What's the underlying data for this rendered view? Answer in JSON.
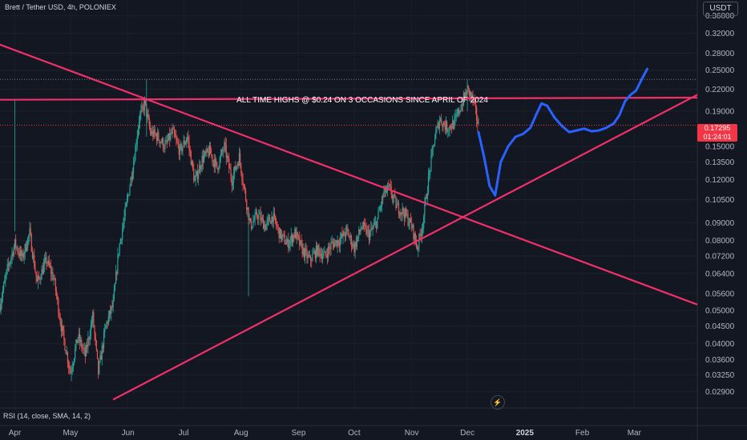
{
  "header": {
    "title": "Brett / Tether USD, 4h, POLONIEX"
  },
  "currency_label": "USDT",
  "indicator": {
    "label": "RSI (14, close, SMA, 14, 2)"
  },
  "price_tag": {
    "price": "0.17295",
    "countdown": "01:24:01"
  },
  "icons": {
    "bolt": "lightning-icon"
  },
  "colors": {
    "background": "#131722",
    "up": "#26a69a",
    "down": "#ef5350",
    "trendline": "#f0306a",
    "projection": "#2962ff",
    "tag": "#f23645"
  },
  "chart_data": {
    "type": "candlestick",
    "title": "",
    "annotation": "ALL TIME HIGHS @ $0.24 ON 3 OCCASIONS SINCE APRIL OF 2024",
    "y_scale": "log",
    "ylim": [
      0.026,
      0.4
    ],
    "y_ticks": [
      "0.36000",
      "0.32000",
      "0.28000",
      "0.25000",
      "0.22000",
      "0.19000",
      "0.17295",
      "0.15000",
      "0.13500",
      "0.12000",
      "0.10500",
      "0.09000",
      "0.08000",
      "0.07200",
      "0.06400",
      "0.05600",
      "0.05000",
      "0.04500",
      "0.04000",
      "0.03600",
      "0.03250",
      "0.02900"
    ],
    "x_ticks": [
      "Apr",
      "May",
      "Jun",
      "Jul",
      "Aug",
      "Sep",
      "Oct",
      "Nov",
      "Dec",
      "2025",
      "Feb",
      "Mar"
    ],
    "xlim": [
      "2024-03-24",
      "2025-04-04"
    ],
    "last_price": 0.17295,
    "price_path": [
      [
        "2024-03-24",
        0.052
      ],
      [
        "2024-03-28",
        0.066
      ],
      [
        "2024-04-01",
        0.078
      ],
      [
        "2024-04-05",
        0.071
      ],
      [
        "2024-04-09",
        0.084
      ],
      [
        "2024-04-13",
        0.06
      ],
      [
        "2024-04-18",
        0.07
      ],
      [
        "2024-04-22",
        0.062
      ],
      [
        "2024-04-26",
        0.045
      ],
      [
        "2024-05-01",
        0.033
      ],
      [
        "2024-05-05",
        0.042
      ],
      [
        "2024-05-09",
        0.037
      ],
      [
        "2024-05-13",
        0.048
      ],
      [
        "2024-05-16",
        0.033
      ],
      [
        "2024-05-20",
        0.045
      ],
      [
        "2024-05-24",
        0.052
      ],
      [
        "2024-05-27",
        0.075
      ],
      [
        "2024-05-31",
        0.1
      ],
      [
        "2024-06-04",
        0.135
      ],
      [
        "2024-06-07",
        0.18
      ],
      [
        "2024-06-10",
        0.2
      ],
      [
        "2024-06-13",
        0.165
      ],
      [
        "2024-06-17",
        0.16
      ],
      [
        "2024-06-21",
        0.15
      ],
      [
        "2024-06-25",
        0.165
      ],
      [
        "2024-06-29",
        0.145
      ],
      [
        "2024-07-03",
        0.16
      ],
      [
        "2024-07-07",
        0.118
      ],
      [
        "2024-07-11",
        0.138
      ],
      [
        "2024-07-15",
        0.145
      ],
      [
        "2024-07-19",
        0.13
      ],
      [
        "2024-07-23",
        0.15
      ],
      [
        "2024-07-27",
        0.12
      ],
      [
        "2024-07-31",
        0.14
      ],
      [
        "2024-08-03",
        0.11
      ],
      [
        "2024-08-06",
        0.088
      ],
      [
        "2024-08-10",
        0.095
      ],
      [
        "2024-08-14",
        0.088
      ],
      [
        "2024-08-18",
        0.094
      ],
      [
        "2024-08-22",
        0.083
      ],
      [
        "2024-08-26",
        0.078
      ],
      [
        "2024-08-30",
        0.084
      ],
      [
        "2024-09-03",
        0.075
      ],
      [
        "2024-09-07",
        0.07
      ],
      [
        "2024-09-11",
        0.075
      ],
      [
        "2024-09-15",
        0.072
      ],
      [
        "2024-09-19",
        0.078
      ],
      [
        "2024-09-23",
        0.08
      ],
      [
        "2024-09-27",
        0.085
      ],
      [
        "2024-10-01",
        0.076
      ],
      [
        "2024-10-05",
        0.088
      ],
      [
        "2024-10-09",
        0.083
      ],
      [
        "2024-10-13",
        0.09
      ],
      [
        "2024-10-17",
        0.11
      ],
      [
        "2024-10-20",
        0.113
      ],
      [
        "2024-10-24",
        0.1
      ],
      [
        "2024-10-28",
        0.096
      ],
      [
        "2024-11-01",
        0.088
      ],
      [
        "2024-11-04",
        0.076
      ],
      [
        "2024-11-07",
        0.09
      ],
      [
        "2024-11-10",
        0.12
      ],
      [
        "2024-11-13",
        0.155
      ],
      [
        "2024-11-16",
        0.18
      ],
      [
        "2024-11-20",
        0.17
      ],
      [
        "2024-11-24",
        0.175
      ],
      [
        "2024-11-28",
        0.2
      ],
      [
        "2024-12-01",
        0.22
      ],
      [
        "2024-12-04",
        0.205
      ],
      [
        "2024-12-07",
        0.172
      ]
    ],
    "trendlines": [
      {
        "name": "descending-resistance",
        "points": [
          [
            "2024-03-01",
            0.33
          ],
          [
            "2025-04-04",
            0.052
          ]
        ]
      },
      {
        "name": "ascending-support",
        "points": [
          [
            "2024-05-24",
            0.0275
          ],
          [
            "2025-04-04",
            0.212
          ]
        ]
      },
      {
        "name": "ath-line",
        "points": [
          [
            "2024-03-20",
            0.205
          ],
          [
            "2025-04-04",
            0.208
          ]
        ]
      }
    ],
    "projection_path": [
      [
        "2024-12-07",
        0.165
      ],
      [
        "2024-12-10",
        0.14
      ],
      [
        "2024-12-13",
        0.115
      ],
      [
        "2024-12-16",
        0.108
      ],
      [
        "2024-12-19",
        0.135
      ],
      [
        "2024-12-23",
        0.15
      ],
      [
        "2024-12-27",
        0.16
      ],
      [
        "2024-12-31",
        0.163
      ],
      [
        "2025-01-04",
        0.17
      ],
      [
        "2025-01-07",
        0.185
      ],
      [
        "2025-01-10",
        0.2
      ],
      [
        "2025-01-13",
        0.197
      ],
      [
        "2025-01-17",
        0.182
      ],
      [
        "2025-01-21",
        0.172
      ],
      [
        "2025-01-25",
        0.165
      ],
      [
        "2025-01-29",
        0.167
      ],
      [
        "2025-02-02",
        0.169
      ],
      [
        "2025-02-06",
        0.166
      ],
      [
        "2025-02-10",
        0.167
      ],
      [
        "2025-02-14",
        0.17
      ],
      [
        "2025-02-18",
        0.175
      ],
      [
        "2025-02-21",
        0.185
      ],
      [
        "2025-02-24",
        0.203
      ],
      [
        "2025-02-27",
        0.212
      ],
      [
        "2025-03-02",
        0.218
      ],
      [
        "2025-03-05",
        0.235
      ],
      [
        "2025-03-08",
        0.252
      ]
    ]
  }
}
